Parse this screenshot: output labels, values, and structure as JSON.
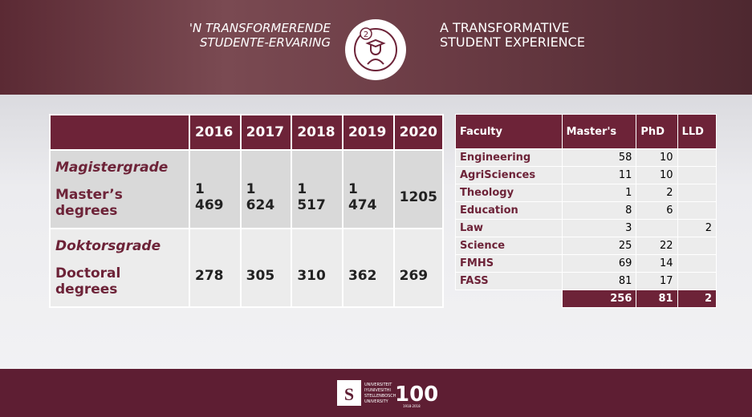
{
  "header": {
    "left_title": [
      "'N TRANSFORMERENDE",
      "STUDENTE-ERVARING"
    ],
    "badge": "2",
    "right_title": [
      "A TRANSFORMATIVE",
      "STUDENT EXPERIENCE"
    ]
  },
  "degrees_table": {
    "columns": [
      "2016",
      "2017",
      "2018",
      "2019",
      "2020"
    ],
    "rows": [
      {
        "label_af": "Magistergrade",
        "label_en": "Master’s degrees",
        "values": [
          "1 469",
          "1 624",
          "1 517",
          "1 474",
          "1205"
        ]
      },
      {
        "label_af": "Doktorsgrade",
        "label_en": "Doctoral degrees",
        "values": [
          "278",
          "305",
          "310",
          "362",
          "269"
        ]
      }
    ]
  },
  "faculty_table": {
    "columns": [
      "Faculty",
      "Master's",
      "PhD",
      "LLD"
    ],
    "rows": [
      [
        "Engineering",
        "58",
        "10",
        null
      ],
      [
        "AgriSciences",
        "11",
        "10",
        null
      ],
      [
        "Theology",
        "1",
        "2",
        null
      ],
      [
        "Education",
        "8",
        "6",
        null
      ],
      [
        "Law",
        "3",
        null,
        "2"
      ],
      [
        "Science",
        "25",
        "22",
        null
      ],
      [
        "FMHS",
        "69",
        "14",
        null
      ],
      [
        "FASS",
        "81",
        "17",
        null
      ]
    ],
    "totals": [
      "256",
      "81",
      "2"
    ]
  },
  "footer": {
    "logo_lines": [
      "UNIVERSITEIT",
      "IYUNIVESITHI",
      "STELLENBOSCH",
      "UNIVERSITY"
    ],
    "anniversary": "100",
    "years": "1918·2018"
  }
}
